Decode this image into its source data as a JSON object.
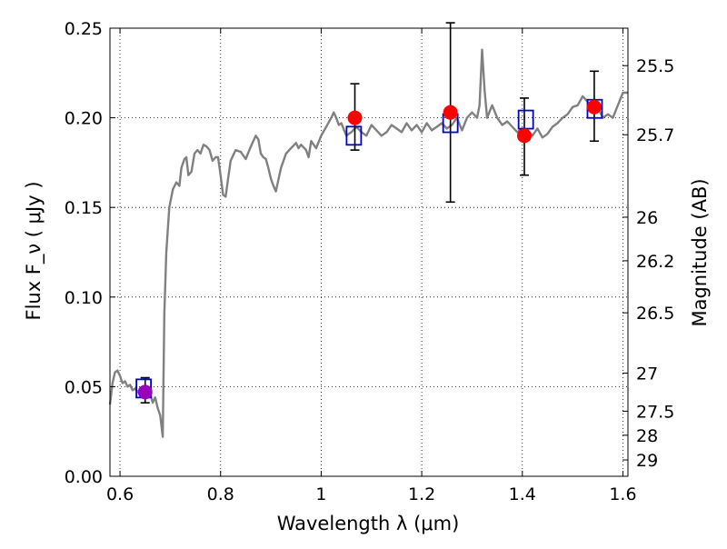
{
  "chart_data": {
    "type": "scatter",
    "title": "",
    "xlabel": "Wavelength  λ (μm)",
    "ylabel": "Flux  F_ν  ( μJy )",
    "ylabel_right": "Magnitude (AB)",
    "xlim": [
      0.58,
      1.61
    ],
    "ylim": [
      0.0,
      0.25
    ],
    "grid": true,
    "x_ticks": [
      0.6,
      0.8,
      1.0,
      1.2,
      1.4,
      1.6
    ],
    "x_tick_labels": [
      "0.6",
      "0.8",
      "1",
      "1.2",
      "1.4",
      "1.6"
    ],
    "y_ticks": [
      0.0,
      0.05,
      0.1,
      0.15,
      0.2,
      0.25
    ],
    "y_tick_labels": [
      "0.00",
      "0.05",
      "0.10",
      "0.15",
      "0.20",
      "0.25"
    ],
    "right_ticks": [
      {
        "label": "25.5",
        "value": 25.5
      },
      {
        "label": "25.7",
        "value": 25.7
      },
      {
        "label": "26",
        "value": 26.0
      },
      {
        "label": "26.2",
        "value": 26.2
      },
      {
        "label": "26.5",
        "value": 26.5
      },
      {
        "label": "27",
        "value": 27.0
      },
      {
        "label": "27.5",
        "value": 27.5
      },
      {
        "label": "28",
        "value": 28.0
      },
      {
        "label": "29",
        "value": 29.0
      }
    ],
    "colors": {
      "model": "#808080",
      "observed": "#ff0000",
      "model_band": "#0000cc",
      "errorbar": "#000000",
      "first_point": "#9900bb"
    },
    "series": [
      {
        "type": "line",
        "points": [
          [
            0.58,
            0.04
          ],
          [
            0.585,
            0.052
          ],
          [
            0.59,
            0.058
          ],
          [
            0.595,
            0.059
          ],
          [
            0.6,
            0.056
          ],
          [
            0.605,
            0.052
          ],
          [
            0.61,
            0.053
          ],
          [
            0.615,
            0.05
          ],
          [
            0.62,
            0.051
          ],
          [
            0.625,
            0.048
          ],
          [
            0.63,
            0.049
          ],
          [
            0.635,
            0.047
          ],
          [
            0.64,
            0.048
          ],
          [
            0.645,
            0.046
          ],
          [
            0.65,
            0.047
          ],
          [
            0.655,
            0.044
          ],
          [
            0.66,
            0.046
          ],
          [
            0.665,
            0.041
          ],
          [
            0.67,
            0.044
          ],
          [
            0.675,
            0.038
          ],
          [
            0.68,
            0.034
          ],
          [
            0.685,
            0.022
          ],
          [
            0.688,
            0.09
          ],
          [
            0.692,
            0.125
          ],
          [
            0.698,
            0.15
          ],
          [
            0.705,
            0.16
          ],
          [
            0.712,
            0.164
          ],
          [
            0.718,
            0.162
          ],
          [
            0.722,
            0.172
          ],
          [
            0.728,
            0.177
          ],
          [
            0.732,
            0.178
          ],
          [
            0.736,
            0.168
          ],
          [
            0.742,
            0.17
          ],
          [
            0.748,
            0.18
          ],
          [
            0.754,
            0.182
          ],
          [
            0.76,
            0.18
          ],
          [
            0.766,
            0.185
          ],
          [
            0.772,
            0.184
          ],
          [
            0.778,
            0.182
          ],
          [
            0.784,
            0.176
          ],
          [
            0.79,
            0.178
          ],
          [
            0.795,
            0.178
          ],
          [
            0.8,
            0.168
          ],
          [
            0.805,
            0.157
          ],
          [
            0.81,
            0.156
          ],
          [
            0.815,
            0.166
          ],
          [
            0.82,
            0.176
          ],
          [
            0.83,
            0.182
          ],
          [
            0.84,
            0.181
          ],
          [
            0.85,
            0.177
          ],
          [
            0.86,
            0.184
          ],
          [
            0.87,
            0.19
          ],
          [
            0.875,
            0.188
          ],
          [
            0.88,
            0.18
          ],
          [
            0.885,
            0.178
          ],
          [
            0.89,
            0.177
          ],
          [
            0.895,
            0.172
          ],
          [
            0.9,
            0.166
          ],
          [
            0.905,
            0.162
          ],
          [
            0.91,
            0.159
          ],
          [
            0.92,
            0.172
          ],
          [
            0.93,
            0.18
          ],
          [
            0.94,
            0.183
          ],
          [
            0.95,
            0.186
          ],
          [
            0.955,
            0.183
          ],
          [
            0.96,
            0.185
          ],
          [
            0.97,
            0.182
          ],
          [
            0.975,
            0.178
          ],
          [
            0.98,
            0.187
          ],
          [
            0.99,
            0.183
          ],
          [
            1.0,
            0.19
          ],
          [
            1.01,
            0.195
          ],
          [
            1.02,
            0.2
          ],
          [
            1.025,
            0.203
          ],
          [
            1.03,
            0.2
          ],
          [
            1.035,
            0.196
          ],
          [
            1.04,
            0.197
          ],
          [
            1.05,
            0.19
          ],
          [
            1.06,
            0.192
          ],
          [
            1.07,
            0.195
          ],
          [
            1.08,
            0.192
          ],
          [
            1.09,
            0.19
          ],
          [
            1.1,
            0.196
          ],
          [
            1.11,
            0.193
          ],
          [
            1.12,
            0.19
          ],
          [
            1.13,
            0.192
          ],
          [
            1.14,
            0.196
          ],
          [
            1.15,
            0.194
          ],
          [
            1.16,
            0.192
          ],
          [
            1.17,
            0.197
          ],
          [
            1.18,
            0.193
          ],
          [
            1.19,
            0.196
          ],
          [
            1.2,
            0.192
          ],
          [
            1.21,
            0.197
          ],
          [
            1.22,
            0.193
          ],
          [
            1.23,
            0.195
          ],
          [
            1.24,
            0.197
          ],
          [
            1.25,
            0.194
          ],
          [
            1.26,
            0.196
          ],
          [
            1.27,
            0.2
          ],
          [
            1.28,
            0.193
          ],
          [
            1.29,
            0.2
          ],
          [
            1.3,
            0.203
          ],
          [
            1.31,
            0.2
          ],
          [
            1.315,
            0.207
          ],
          [
            1.32,
            0.238
          ],
          [
            1.325,
            0.215
          ],
          [
            1.33,
            0.2
          ],
          [
            1.34,
            0.207
          ],
          [
            1.35,
            0.2
          ],
          [
            1.36,
            0.196
          ],
          [
            1.37,
            0.198
          ],
          [
            1.38,
            0.195
          ],
          [
            1.39,
            0.192
          ],
          [
            1.4,
            0.194
          ],
          [
            1.41,
            0.193
          ],
          [
            1.42,
            0.19
          ],
          [
            1.43,
            0.194
          ],
          [
            1.44,
            0.189
          ],
          [
            1.45,
            0.191
          ],
          [
            1.46,
            0.195
          ],
          [
            1.47,
            0.197
          ],
          [
            1.48,
            0.2
          ],
          [
            1.49,
            0.202
          ],
          [
            1.5,
            0.206
          ],
          [
            1.51,
            0.207
          ],
          [
            1.52,
            0.212
          ],
          [
            1.53,
            0.209
          ],
          [
            1.54,
            0.204
          ],
          [
            1.55,
            0.206
          ],
          [
            1.56,
            0.2
          ],
          [
            1.57,
            0.202
          ],
          [
            1.58,
            0.2
          ],
          [
            1.59,
            0.207
          ],
          [
            1.6,
            0.214
          ],
          [
            1.61,
            0.214
          ]
        ]
      },
      {
        "type": "errorbar",
        "points": [
          {
            "x": 0.65,
            "y": 0.047,
            "ylo": 0.041,
            "yhi": 0.055
          },
          {
            "x": 1.067,
            "y": 0.2,
            "ylo": 0.182,
            "yhi": 0.219
          },
          {
            "x": 1.257,
            "y": 0.203,
            "ylo": 0.153,
            "yhi": 0.253
          },
          {
            "x": 1.404,
            "y": 0.19,
            "ylo": 0.168,
            "yhi": 0.211
          },
          {
            "x": 1.543,
            "y": 0.206,
            "ylo": 0.187,
            "yhi": 0.226
          }
        ]
      },
      {
        "type": "scatter",
        "points": [
          [
            0.647,
            0.049
          ],
          [
            1.065,
            0.19
          ],
          [
            1.257,
            0.197
          ],
          [
            1.407,
            0.199
          ],
          [
            1.544,
            0.205
          ]
        ]
      }
    ]
  }
}
